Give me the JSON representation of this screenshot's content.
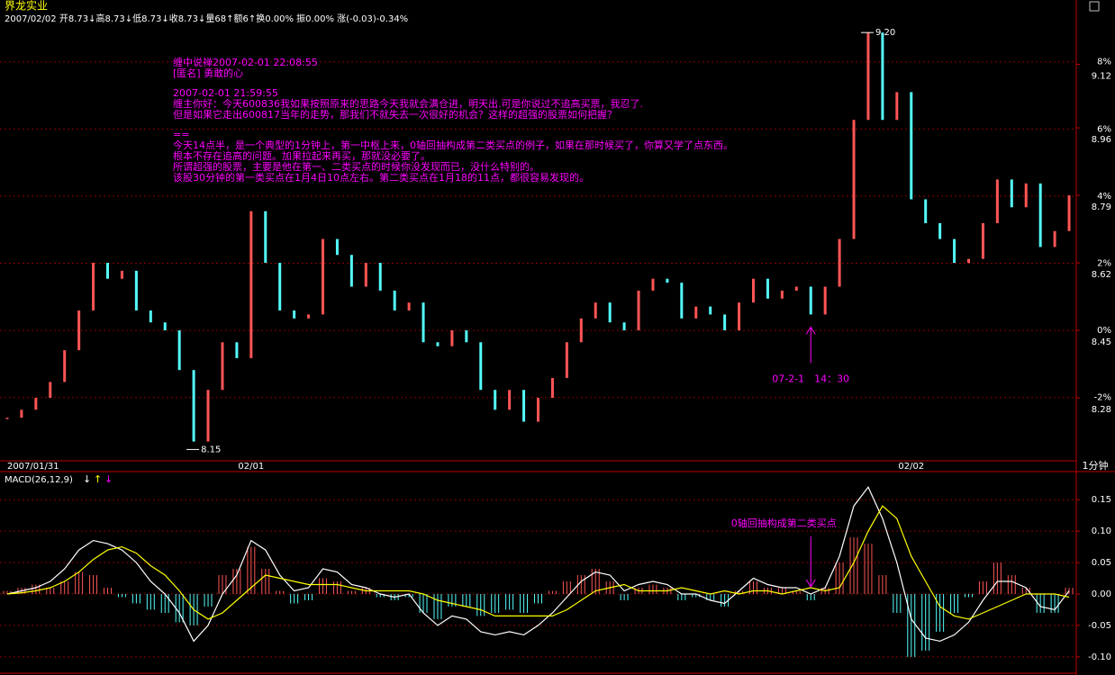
{
  "header": {
    "title": "界龙实业",
    "info": "2007/02/02 开8.73↓高8.73↓低8.73↓收8.73↓量68↑额6↑换0.00% 振0.00% 涨(-0.03)-0.34%",
    "period": "1分钟"
  },
  "chart_data": [
    {
      "type": "line",
      "categories": [
        "2007/01/31",
        null,
        null,
        null,
        null,
        null,
        null,
        null,
        null,
        null,
        null,
        null,
        null,
        null,
        null,
        null,
        null,
        "02/01",
        null,
        null,
        null,
        null,
        null,
        null,
        null,
        null,
        null,
        null,
        null,
        null,
        null,
        null,
        null,
        null,
        null,
        null,
        null,
        null,
        null,
        null,
        null,
        null,
        null,
        null,
        null,
        null,
        null,
        null,
        null,
        null,
        null,
        null,
        null,
        null,
        null,
        null,
        null,
        null,
        null,
        null,
        null,
        null,
        null,
        "02/02",
        null,
        null,
        null,
        null,
        null,
        null,
        null,
        null,
        null,
        null,
        null
      ],
      "values": [
        8.23,
        8.25,
        8.28,
        8.32,
        8.4,
        8.5,
        8.62,
        8.58,
        8.6,
        8.5,
        8.47,
        8.45,
        8.35,
        8.17,
        8.3,
        8.42,
        8.38,
        8.75,
        8.62,
        8.5,
        8.48,
        8.49,
        8.68,
        8.64,
        8.56,
        8.62,
        8.55,
        8.5,
        8.52,
        8.42,
        8.41,
        8.45,
        8.42,
        8.3,
        8.25,
        8.3,
        8.22,
        8.28,
        8.33,
        8.42,
        8.48,
        8.52,
        8.47,
        8.45,
        8.55,
        8.58,
        8.57,
        8.48,
        8.51,
        8.49,
        8.45,
        8.52,
        8.58,
        8.53,
        8.55,
        8.56,
        8.49,
        8.56,
        8.68,
        8.98,
        9.2,
        8.98,
        9.05,
        8.78,
        8.72,
        8.68,
        8.62,
        8.63,
        8.72,
        8.83,
        8.76,
        8.82,
        8.66,
        8.7,
        8.79
      ],
      "up_color": "#ff5555",
      "down_color": "#54fcfc",
      "ylim": [
        8.126,
        9.248
      ],
      "yticks": [
        8.28,
        8.45,
        8.62,
        8.79,
        8.96,
        9.12
      ],
      "y2lim": [
        -3.83,
        9.44
      ],
      "y2ticks": [
        {
          "value": -2,
          "label": "-2%"
        },
        {
          "value": 0,
          "label": "0%"
        },
        {
          "value": 2,
          "label": "2%"
        },
        {
          "value": 4,
          "label": "4%"
        },
        {
          "value": 6,
          "label": "6%"
        },
        {
          "value": 8,
          "label": "8%"
        }
      ],
      "grid": true,
      "annotations": [
        {
          "text": "9.20",
          "x": 60,
          "y": 9.2
        },
        {
          "text": "8.15",
          "x": 13,
          "y": 8.15
        },
        {
          "text": "07-2-1　14：30",
          "x": 56
        }
      ],
      "comment": [
        [
          "缠中说禅2007-02-01 22:08:55",
          "[匿名] 勇敢的心"
        ],
        [
          "2007-02-01 21:59:55",
          "缠主你好：今天600836我如果按照原来的思路今天我就会满仓进，明天出.可是你说过不追高买票，我忍了.",
          "但是如果它走出600817当年的走势，那我们不就失去一次很好的机会？这样的超强的股票如何把握？"
        ],
        [
          "==",
          "今天14点半，是一个典型的1分钟上，第一中枢上来，0轴回抽构成第二类买点的例子，如果在那时候买了，你算又学了点东西。",
          "根本不存在追高的问题。加果拉起来再买，那就没必要了。",
          "所谓超强的股票，主要是他在第一、二类买点的时候你没发现而已，没什么特别的。",
          "该股30分钟的第一类买点在1月4日10点左右。第二类买点在1月18的11点，都很容易发现的。"
        ]
      ]
    },
    {
      "type": "macd",
      "title": "MACD(26,12,9)",
      "arrows": [
        {
          "text": "↓",
          "color": "#ffffff"
        },
        {
          "text": "↑",
          "color": "#ffff00"
        },
        {
          "text": "↓",
          "color": "#ff00ff"
        }
      ],
      "values": [
        0.005,
        0.01,
        0.015,
        0.01,
        0.02,
        0.035,
        0.03,
        0.01,
        -0.005,
        -0.015,
        -0.025,
        -0.03,
        -0.045,
        -0.05,
        -0.02,
        0.03,
        0.04,
        0.075,
        0.04,
        0.005,
        -0.015,
        -0.01,
        0.025,
        0.02,
        0.005,
        0.01,
        -0.005,
        -0.01,
        -0.005,
        -0.03,
        -0.04,
        -0.02,
        -0.02,
        -0.035,
        -0.03,
        -0.025,
        -0.03,
        -0.015,
        0.005,
        0.02,
        0.03,
        0.04,
        0.02,
        -0.01,
        0.01,
        0.015,
        0.01,
        -0.01,
        -0.005,
        -0.01,
        -0.02,
        0.005,
        0.02,
        0.01,
        0.01,
        0.005,
        -0.01,
        0.01,
        0.05,
        0.09,
        0.08,
        0.03,
        -0.03,
        -0.1,
        -0.09,
        -0.06,
        -0.03,
        -0.005,
        0.02,
        0.05,
        0.03,
        0.01,
        -0.03,
        -0.03,
        0.01
      ],
      "up_color": "#ff5555",
      "down_color": "#54fcfc",
      "series": [
        {
          "color": "#ffffff",
          "values": [
            0.0,
            0.005,
            0.01,
            0.02,
            0.04,
            0.07,
            0.085,
            0.08,
            0.07,
            0.05,
            0.02,
            0.0,
            -0.03,
            -0.075,
            -0.05,
            0.0,
            0.03,
            0.085,
            0.07,
            0.03,
            0.005,
            0.01,
            0.04,
            0.035,
            0.015,
            0.01,
            0.0,
            -0.005,
            0.0,
            -0.03,
            -0.05,
            -0.035,
            -0.04,
            -0.06,
            -0.065,
            -0.06,
            -0.065,
            -0.05,
            -0.03,
            -0.005,
            0.02,
            0.035,
            0.03,
            0.005,
            0.015,
            0.02,
            0.015,
            0.0,
            0.0,
            -0.01,
            -0.015,
            0.005,
            0.025,
            0.015,
            0.01,
            0.01,
            0.0,
            0.01,
            0.06,
            0.14,
            0.17,
            0.12,
            0.05,
            -0.04,
            -0.07,
            -0.075,
            -0.065,
            -0.045,
            -0.01,
            0.02,
            0.02,
            0.01,
            -0.02,
            -0.025,
            0.005
          ]
        },
        {
          "color": "#ffff00",
          "values": [
            0.0,
            0.002,
            0.005,
            0.01,
            0.02,
            0.035,
            0.055,
            0.07,
            0.075,
            0.065,
            0.045,
            0.03,
            0.005,
            -0.025,
            -0.04,
            -0.03,
            -0.01,
            0.01,
            0.03,
            0.025,
            0.02,
            0.015,
            0.015,
            0.015,
            0.01,
            0.005,
            0.005,
            0.005,
            0.005,
            0.0,
            -0.01,
            -0.015,
            -0.02,
            -0.025,
            -0.035,
            -0.035,
            -0.035,
            -0.035,
            -0.035,
            -0.025,
            -0.01,
            0.005,
            0.01,
            0.015,
            0.005,
            0.005,
            0.005,
            0.01,
            0.005,
            0.0,
            0.005,
            0.0,
            0.005,
            0.005,
            0.0,
            0.005,
            0.01,
            0.005,
            0.01,
            0.05,
            0.1,
            0.14,
            0.12,
            0.06,
            0.02,
            -0.02,
            -0.035,
            -0.04,
            -0.03,
            -0.02,
            -0.01,
            0.0,
            0.0,
            0.0,
            -0.005
          ]
        }
      ],
      "ylim": [
        -0.126,
        0.189
      ],
      "yticks": [
        {
          "value": -0.1,
          "label": "-0.10"
        },
        -0.05,
        {
          "value": 0,
          "label": "0.00"
        },
        0.05,
        {
          "value": 0.1,
          "label": "0.10"
        },
        0.15
      ],
      "grid": true,
      "annotations": [
        {
          "text": "0轴回抽构成第二类买点",
          "x": 56
        }
      ]
    }
  ]
}
